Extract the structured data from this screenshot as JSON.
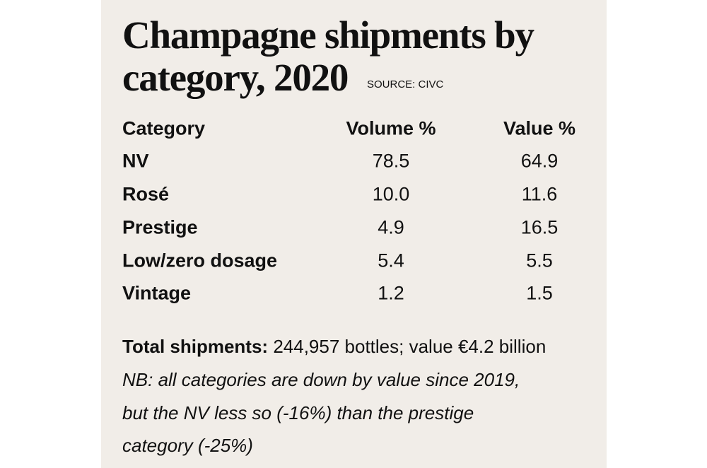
{
  "header": {
    "title_lines": [
      "Champagne shipments by",
      "category, 2020"
    ],
    "source": "SOURCE: CIVC"
  },
  "table": {
    "columns": [
      "Category",
      "Volume %",
      "Value %"
    ],
    "rows": [
      [
        "NV",
        "78.5",
        "64.9"
      ],
      [
        "Rosé",
        "10.0",
        "11.6"
      ],
      [
        "Prestige",
        "4.9",
        "16.5"
      ],
      [
        "Low/zero dosage",
        "5.4",
        "5.5"
      ],
      [
        "Vintage",
        "1.2",
        "1.5"
      ]
    ]
  },
  "footer": {
    "total_label": "Total shipments:",
    "total_text": "244,957 bottles; value €4.2 billion",
    "note_lines": [
      "NB: all categories are down by value since 2019,",
      "but the NV less so (-16%) than the prestige",
      "category (-25%)"
    ]
  }
}
